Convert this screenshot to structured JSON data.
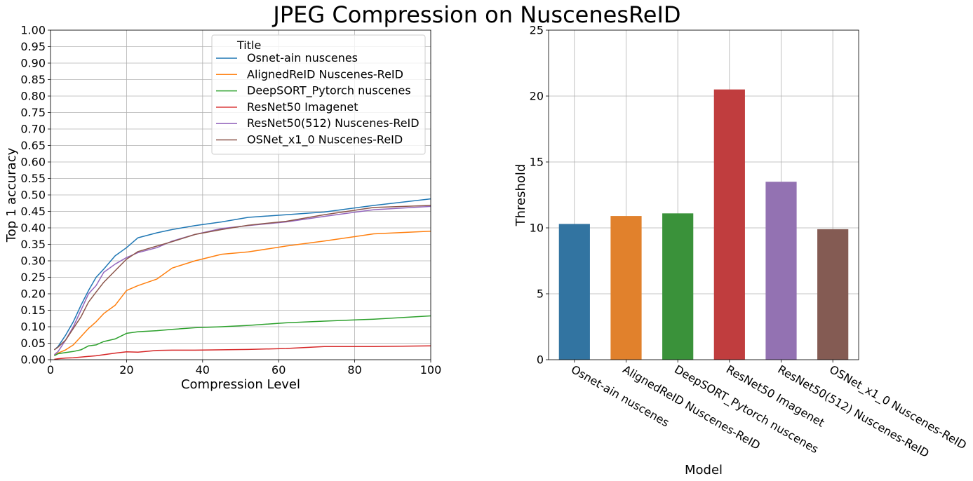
{
  "figure_title": "JPEG Compression on NuscenesReID",
  "chart_data": [
    {
      "type": "line",
      "title": "",
      "xlabel": "Compression Level",
      "ylabel": "Top 1 accuracy",
      "xlim": [
        0,
        100
      ],
      "ylim": [
        0,
        1
      ],
      "xticks": [
        "0",
        "20",
        "40",
        "60",
        "80",
        "100"
      ],
      "yticks": [
        "0.00",
        "0.05",
        "0.10",
        "0.15",
        "0.20",
        "0.25",
        "0.30",
        "0.35",
        "0.40",
        "0.45",
        "0.50",
        "0.55",
        "0.60",
        "0.65",
        "0.70",
        "0.75",
        "0.80",
        "0.85",
        "0.90",
        "0.95",
        "1.00"
      ],
      "grid": true,
      "legend_title": "Title",
      "legend_position": "upper-right",
      "x": [
        1,
        2,
        4,
        6,
        8,
        10,
        12,
        14,
        17,
        20,
        23,
        28,
        32,
        38,
        45,
        52,
        62,
        72,
        85,
        100
      ],
      "series": [
        {
          "name": "Osnet-ain nuscenes",
          "color": "#1f77b4",
          "values": [
            0.03,
            0.04,
            0.075,
            0.115,
            0.165,
            0.21,
            0.25,
            0.275,
            0.315,
            0.34,
            0.37,
            0.385,
            0.395,
            0.407,
            0.418,
            0.432,
            0.44,
            0.448,
            0.468,
            0.488
          ]
        },
        {
          "name": "AlignedReID Nuscenes-ReID",
          "color": "#ff7f0e",
          "values": [
            0.012,
            0.02,
            0.03,
            0.045,
            0.07,
            0.095,
            0.115,
            0.14,
            0.165,
            0.21,
            0.225,
            0.245,
            0.278,
            0.3,
            0.32,
            0.327,
            0.345,
            0.36,
            0.382,
            0.39
          ]
        },
        {
          "name": "DeepSORT_Pytorch nuscenes",
          "color": "#2ca02c",
          "values": [
            0.012,
            0.018,
            0.022,
            0.025,
            0.03,
            0.042,
            0.045,
            0.055,
            0.063,
            0.08,
            0.085,
            0.088,
            0.092,
            0.097,
            0.1,
            0.104,
            0.112,
            0.117,
            0.123,
            0.133
          ]
        },
        {
          "name": "ResNet50 Imagenet",
          "color": "#d62728",
          "values": [
            0.001,
            0.003,
            0.005,
            0.006,
            0.008,
            0.01,
            0.012,
            0.015,
            0.02,
            0.024,
            0.023,
            0.028,
            0.029,
            0.029,
            0.03,
            0.031,
            0.034,
            0.04,
            0.04,
            0.042
          ]
        },
        {
          "name": "ResNet50(512) Nuscenes-ReID",
          "color": "#9467bd",
          "values": [
            0.015,
            0.025,
            0.06,
            0.1,
            0.15,
            0.2,
            0.225,
            0.265,
            0.29,
            0.31,
            0.325,
            0.34,
            0.36,
            0.38,
            0.398,
            0.407,
            0.418,
            0.435,
            0.455,
            0.465
          ]
        },
        {
          "name": "OSNet_x1_0 Nuscenes-ReID",
          "color": "#8c564b",
          "values": [
            0.03,
            0.038,
            0.06,
            0.095,
            0.13,
            0.175,
            0.205,
            0.235,
            0.27,
            0.305,
            0.328,
            0.345,
            0.358,
            0.38,
            0.395,
            0.408,
            0.42,
            0.44,
            0.462,
            0.468
          ]
        }
      ]
    },
    {
      "type": "bar",
      "title": "",
      "xlabel": "Model",
      "ylabel": "Threshold",
      "ylim": [
        0,
        25
      ],
      "yticks": [
        "0",
        "5",
        "10",
        "15",
        "20",
        "25"
      ],
      "grid": true,
      "categories": [
        "Osnet-ain nuscenes",
        "AlignedReID Nuscenes-ReID",
        "DeepSORT_Pytorch nuscenes",
        "ResNet50 Imagenet",
        "ResNet50(512) Nuscenes-ReID",
        "OSNet_x1_0 Nuscenes-ReID"
      ],
      "values": [
        10.3,
        10.9,
        11.1,
        20.5,
        13.5,
        9.9
      ],
      "colors": [
        "#3274a1",
        "#e1812c",
        "#3a923a",
        "#c03d3e",
        "#9372b2",
        "#845b53"
      ]
    }
  ]
}
